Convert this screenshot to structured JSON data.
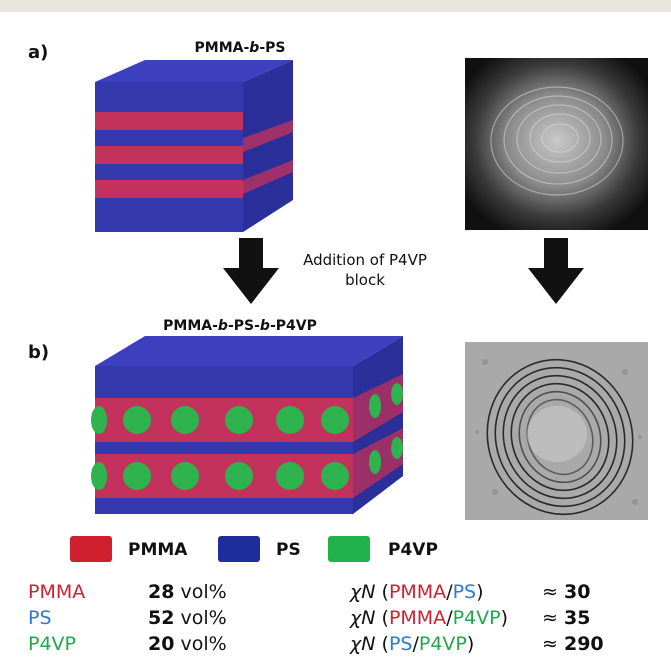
{
  "panel_a": {
    "label": "a)",
    "title_prefix": "PMMA-",
    "title_italic": "b",
    "title_suffix": "-PS"
  },
  "panel_b": {
    "label": "b)",
    "title_p1": "PMMA-",
    "title_i1": "b",
    "title_p2": "-PS-",
    "title_i2": "b",
    "title_p3": "-P4VP"
  },
  "arrow_caption": {
    "line1": "Addition of P4VP",
    "line2": "block"
  },
  "legend": [
    {
      "label": "PMMA",
      "color": "#d0202f"
    },
    {
      "label": "PS",
      "color": "#1f2d9c"
    },
    {
      "label": "P4VP",
      "color": "#21b14b"
    }
  ],
  "composition": [
    {
      "name": "PMMA",
      "color": "#d0202f",
      "value": "28",
      "unit": "vol%"
    },
    {
      "name": "PS",
      "color": "#2b7bd0",
      "value": "52",
      "unit": "vol%"
    },
    {
      "name": "P4VP",
      "color": "#21a84a",
      "value": "20",
      "unit": "vol%"
    }
  ],
  "chi": {
    "symbol": "χN",
    "open": "(",
    "slash": "/",
    "close": ")",
    "approx": "≈",
    "rows": [
      {
        "a": "PMMA",
        "a_color": "#d0202f",
        "b": "PS",
        "b_color": "#2b7bd0",
        "value": "30"
      },
      {
        "a": "PMMA",
        "a_color": "#d0202f",
        "b": "P4VP",
        "b_color": "#21a84a",
        "value": "35"
      },
      {
        "a": "PS",
        "a_color": "#2b7bd0",
        "b": "P4VP",
        "b_color": "#21a84a",
        "value": "290"
      }
    ]
  }
}
